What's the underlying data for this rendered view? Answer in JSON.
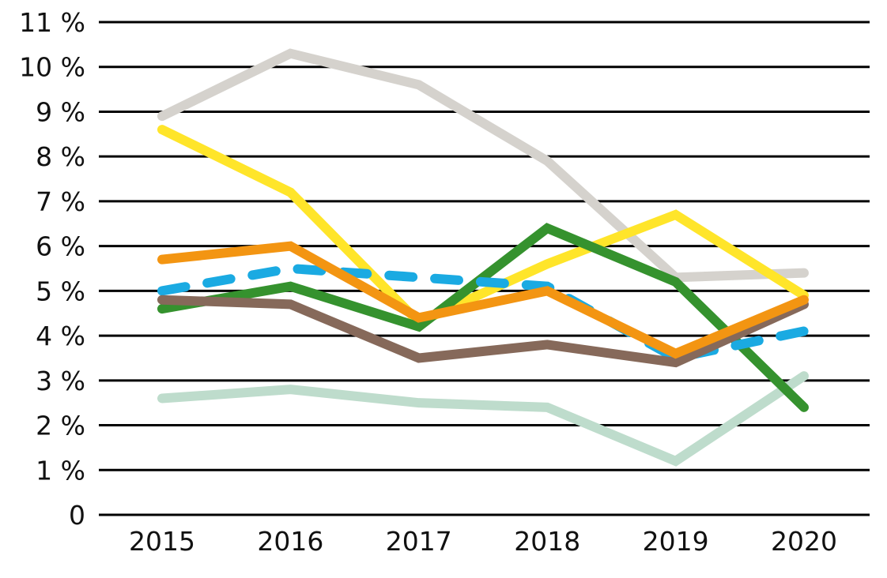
{
  "chart_data": {
    "type": "line",
    "title": "",
    "xlabel": "",
    "ylabel": "",
    "x": [
      "2015",
      "2016",
      "2017",
      "2018",
      "2019",
      "2020"
    ],
    "ylim": [
      0,
      11
    ],
    "yticks": [
      0,
      1,
      2,
      3,
      4,
      5,
      6,
      7,
      8,
      9,
      10,
      11
    ],
    "ytick_labels": [
      "0",
      "1 %",
      "2 %",
      "3 %",
      "4 %",
      "5 %",
      "6 %",
      "7 %",
      "8 %",
      "9 %",
      "10 %",
      "11 %"
    ],
    "grid": "horizontal",
    "legend": "none",
    "series": [
      {
        "name": "series-light-green",
        "color": "#BEDCCC",
        "dashed": false,
        "values": [
          2.6,
          2.8,
          2.5,
          2.4,
          1.2,
          3.1
        ]
      },
      {
        "name": "series-grey",
        "color": "#D5D2CD",
        "dashed": false,
        "values": [
          8.9,
          10.3,
          9.6,
          7.9,
          5.3,
          5.4
        ]
      },
      {
        "name": "series-yellow",
        "color": "#FFE52A",
        "dashed": false,
        "values": [
          8.6,
          7.2,
          4.3,
          5.6,
          6.7,
          4.9
        ]
      },
      {
        "name": "series-green",
        "color": "#35922E",
        "dashed": false,
        "values": [
          4.6,
          5.1,
          4.2,
          6.4,
          5.2,
          2.4
        ]
      },
      {
        "name": "series-blue-dashed",
        "color": "#1AAAE2",
        "dashed": true,
        "values": [
          5.0,
          5.5,
          5.3,
          5.1,
          3.5,
          4.1
        ]
      },
      {
        "name": "series-brown",
        "color": "#86695A",
        "dashed": false,
        "values": [
          4.8,
          4.7,
          3.5,
          3.8,
          3.4,
          4.7
        ]
      },
      {
        "name": "series-orange",
        "color": "#F39512",
        "dashed": false,
        "values": [
          5.7,
          6.0,
          4.4,
          5.0,
          3.6,
          4.8
        ]
      }
    ]
  }
}
